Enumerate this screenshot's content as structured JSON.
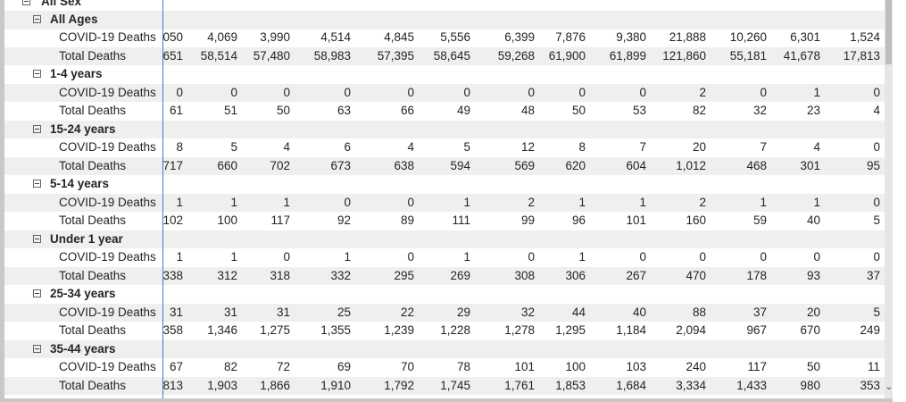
{
  "header_row": "All Sex",
  "groups": [
    {
      "label": "All Ages",
      "rows": [
        {
          "label": "COVID-19 Deaths",
          "values": [
            "050",
            "4,069",
            "3,990",
            "4,514",
            "4,845",
            "5,556",
            "6,399",
            "7,876",
            "9,380",
            "21,888",
            "10,260",
            "6,301",
            "1,524"
          ]
        },
        {
          "label": "Total Deaths",
          "values": [
            "651",
            "58,514",
            "57,480",
            "58,983",
            "57,395",
            "58,645",
            "59,268",
            "61,900",
            "61,899",
            "121,860",
            "55,181",
            "41,678",
            "17,813"
          ]
        }
      ]
    },
    {
      "label": "1-4 years",
      "rows": [
        {
          "label": "COVID-19 Deaths",
          "values": [
            "0",
            "0",
            "0",
            "0",
            "0",
            "0",
            "0",
            "0",
            "0",
            "2",
            "0",
            "1",
            "0"
          ]
        },
        {
          "label": "Total Deaths",
          "values": [
            "61",
            "51",
            "50",
            "63",
            "66",
            "49",
            "48",
            "50",
            "53",
            "82",
            "32",
            "23",
            "4"
          ]
        }
      ]
    },
    {
      "label": "15-24 years",
      "rows": [
        {
          "label": "COVID-19 Deaths",
          "values": [
            "8",
            "5",
            "4",
            "6",
            "4",
            "5",
            "12",
            "8",
            "7",
            "20",
            "7",
            "4",
            "0"
          ]
        },
        {
          "label": "Total Deaths",
          "values": [
            "717",
            "660",
            "702",
            "673",
            "638",
            "594",
            "569",
            "620",
            "604",
            "1,012",
            "468",
            "301",
            "95"
          ]
        }
      ]
    },
    {
      "label": "5-14 years",
      "rows": [
        {
          "label": "COVID-19 Deaths",
          "values": [
            "1",
            "1",
            "1",
            "0",
            "0",
            "1",
            "2",
            "1",
            "1",
            "2",
            "1",
            "1",
            "0"
          ]
        },
        {
          "label": "Total Deaths",
          "values": [
            "102",
            "100",
            "117",
            "92",
            "89",
            "111",
            "99",
            "96",
            "101",
            "160",
            "59",
            "40",
            "5"
          ]
        }
      ]
    },
    {
      "label": "Under 1 year",
      "rows": [
        {
          "label": "COVID-19 Deaths",
          "values": [
            "1",
            "1",
            "0",
            "1",
            "0",
            "1",
            "0",
            "1",
            "0",
            "0",
            "0",
            "0",
            "0"
          ]
        },
        {
          "label": "Total Deaths",
          "values": [
            "338",
            "312",
            "318",
            "332",
            "295",
            "269",
            "308",
            "306",
            "267",
            "470",
            "178",
            "93",
            "37"
          ]
        }
      ]
    },
    {
      "label": "25-34 years",
      "rows": [
        {
          "label": "COVID-19 Deaths",
          "values": [
            "31",
            "31",
            "31",
            "25",
            "22",
            "29",
            "32",
            "44",
            "40",
            "88",
            "37",
            "20",
            "5"
          ]
        },
        {
          "label": "Total Deaths",
          "values": [
            "358",
            "1,346",
            "1,275",
            "1,355",
            "1,239",
            "1,228",
            "1,278",
            "1,295",
            "1,184",
            "2,094",
            "967",
            "670",
            "249"
          ]
        }
      ]
    },
    {
      "label": "35-44 years",
      "rows": [
        {
          "label": "COVID-19 Deaths",
          "values": [
            "67",
            "82",
            "72",
            "69",
            "70",
            "78",
            "101",
            "100",
            "103",
            "240",
            "117",
            "50",
            "11"
          ]
        },
        {
          "label": "Total Deaths",
          "values": [
            "813",
            "1,903",
            "1,866",
            "1,910",
            "1,792",
            "1,745",
            "1,761",
            "1,853",
            "1,684",
            "3,334",
            "1,433",
            "980",
            "353"
          ]
        }
      ]
    }
  ]
}
